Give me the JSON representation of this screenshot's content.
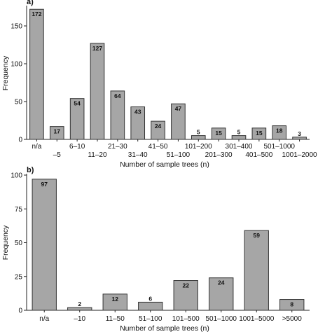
{
  "chart_data": [
    {
      "type": "bar",
      "panel_label": "a)",
      "categories": [
        "n/a",
        "–5",
        "6–10",
        "11–20",
        "21–30",
        "31–40",
        "41–50",
        "51–100",
        "101–200",
        "201–300",
        "301–400",
        "401–500",
        "501–1000",
        "1001–2000"
      ],
      "values": [
        172,
        17,
        54,
        127,
        64,
        43,
        24,
        47,
        5,
        15,
        5,
        15,
        18,
        3
      ],
      "xlabel": "Number of sample trees (n)",
      "ylabel": "Frequency",
      "ylim": [
        0,
        175
      ],
      "yticks": [
        0,
        50,
        100,
        150
      ],
      "staggered_tick_labels": true
    },
    {
      "type": "bar",
      "panel_label": "b)",
      "categories": [
        "n/a",
        "–10",
        "11–50",
        "51–100",
        "101–500",
        "501–1000",
        "1001–5000",
        ">5000"
      ],
      "values": [
        97,
        2,
        12,
        6,
        22,
        24,
        59,
        8
      ],
      "xlabel": "Number of sample trees (n)",
      "ylabel": "Frequency",
      "ylim": [
        0,
        100
      ],
      "yticks": [
        0,
        25,
        50,
        75,
        100
      ],
      "staggered_tick_labels": false
    }
  ]
}
